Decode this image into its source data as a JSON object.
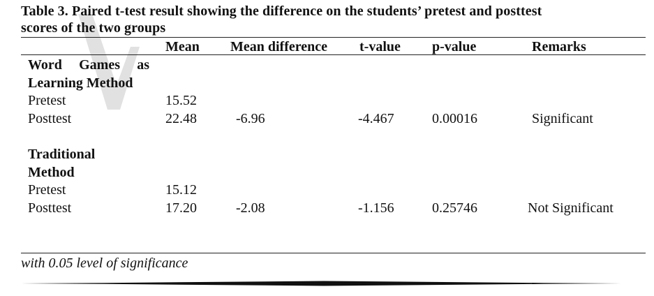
{
  "caption": {
    "line1": "Table 3. Paired t-test result showing the difference on the students’ pretest and posttest",
    "line2": "scores of the two groups"
  },
  "table": {
    "headers": {
      "mean": "Mean",
      "mean_difference": "Mean difference",
      "t_value": "t-value",
      "p_value": "p-value",
      "remarks": "Remarks"
    },
    "groups": [
      {
        "title_line1": "Word Games as",
        "title_line2": "Learning Method",
        "pretest": {
          "label": "Pretest",
          "mean": "15.52"
        },
        "posttest": {
          "label": "Posttest",
          "mean": "22.48",
          "mean_difference": "-6.96",
          "t_value": "-4.467",
          "p_value": "0.00016",
          "remarks": "Significant"
        }
      },
      {
        "title_line1": "Traditional",
        "title_line2": "Method",
        "pretest": {
          "label": "Pretest",
          "mean": "15.12"
        },
        "posttest": {
          "label": "Posttest",
          "mean": "17.20",
          "mean_difference": "-2.08",
          "t_value": "-1.156",
          "p_value": "0.25746",
          "remarks": "Not Significant"
        }
      }
    ]
  },
  "note": "with 0.05 level of significance",
  "watermark": {
    "color": "#c8c8c8"
  }
}
